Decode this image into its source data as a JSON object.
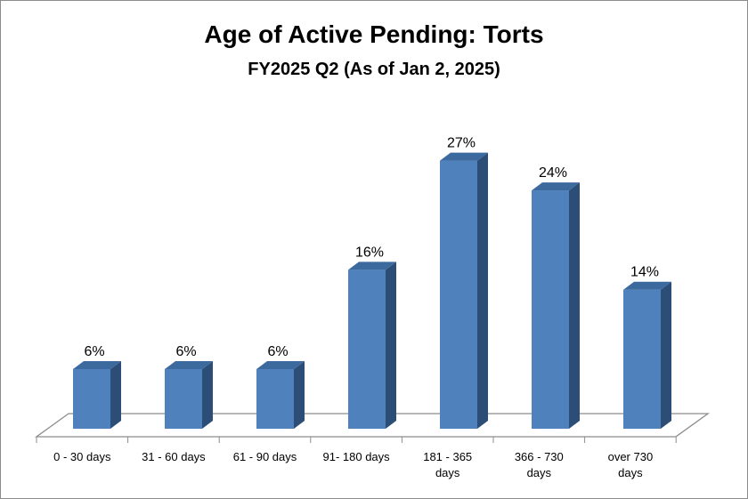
{
  "chart_data": {
    "type": "bar",
    "title": "Age of Active Pending: Torts",
    "subtitle": "FY2025 Q2 (As of Jan 2, 2025)",
    "categories": [
      [
        "0 - 30 days"
      ],
      [
        "31 - 60 days"
      ],
      [
        "61 - 90 days"
      ],
      [
        "91- 180 days"
      ],
      [
        "181 - 365",
        "days"
      ],
      [
        "366 - 730",
        "days"
      ],
      [
        "over 730",
        "days"
      ]
    ],
    "values": [
      6,
      6,
      6,
      16,
      27,
      24,
      14
    ],
    "data_labels": [
      "6%",
      "6%",
      "6%",
      "16%",
      "27%",
      "24%",
      "14%"
    ],
    "unit": "%",
    "ylim": [
      0,
      30
    ],
    "grid": false,
    "colors": {
      "bar_front": "#4f81bd",
      "bar_side": "#2c4d75",
      "bar_top": "#3d6a9e",
      "floor_line": "#8c8c8c"
    }
  }
}
